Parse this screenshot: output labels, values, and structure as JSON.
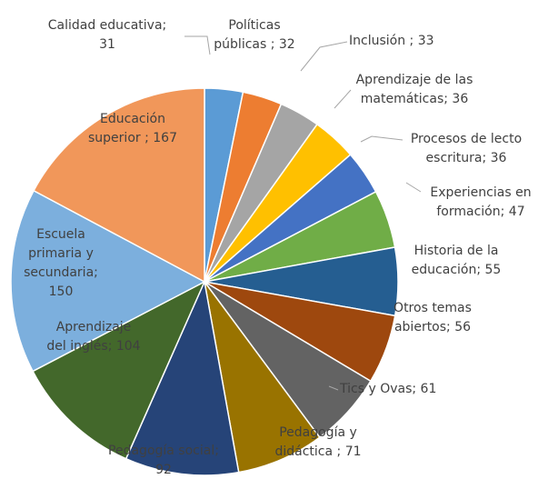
{
  "chart_data": {
    "type": "pie",
    "title": "",
    "slices": [
      {
        "label_lines": [
          "Calidad educativa;",
          "31"
        ],
        "value": 31,
        "color": "#5b9bd5"
      },
      {
        "label_lines": [
          "Políticas",
          "públicas ; 32"
        ],
        "value": 32,
        "color": "#ed7d31"
      },
      {
        "label_lines": [
          "Inclusión ; 33"
        ],
        "value": 33,
        "color": "#a5a5a5"
      },
      {
        "label_lines": [
          "Aprendizaje de las",
          "matemáticas; 36"
        ],
        "value": 36,
        "color": "#ffc000"
      },
      {
        "label_lines": [
          "Procesos de lecto",
          "escritura; 36"
        ],
        "value": 36,
        "color": "#4472c4"
      },
      {
        "label_lines": [
          "Experiencias en",
          "formación; 47"
        ],
        "value": 47,
        "color": "#70ad47"
      },
      {
        "label_lines": [
          "Historia de la",
          "educación; 55"
        ],
        "value": 55,
        "color": "#255e91"
      },
      {
        "label_lines": [
          "Otros temas",
          "abiertos; 56"
        ],
        "value": 56,
        "color": "#9e480e"
      },
      {
        "label_lines": [
          "Tics y Ovas; 61"
        ],
        "value": 61,
        "color": "#636363"
      },
      {
        "label_lines": [
          "Pedagogía y",
          "didáctica ; 71"
        ],
        "value": 71,
        "color": "#997300"
      },
      {
        "label_lines": [
          "Pedagogía social;",
          "92"
        ],
        "value": 92,
        "color": "#264478"
      },
      {
        "label_lines": [
          "Aprendizaje",
          "del inglés; 104"
        ],
        "value": 104,
        "color": "#43682b"
      },
      {
        "label_lines": [
          "Escuela",
          "primaria y",
          "secundaria;",
          "150"
        ],
        "value": 150,
        "color": "#7cafdd"
      },
      {
        "label_lines": [
          "Educación",
          "superior ; 167"
        ],
        "value": 167,
        "color": "#f1975a"
      }
    ]
  }
}
